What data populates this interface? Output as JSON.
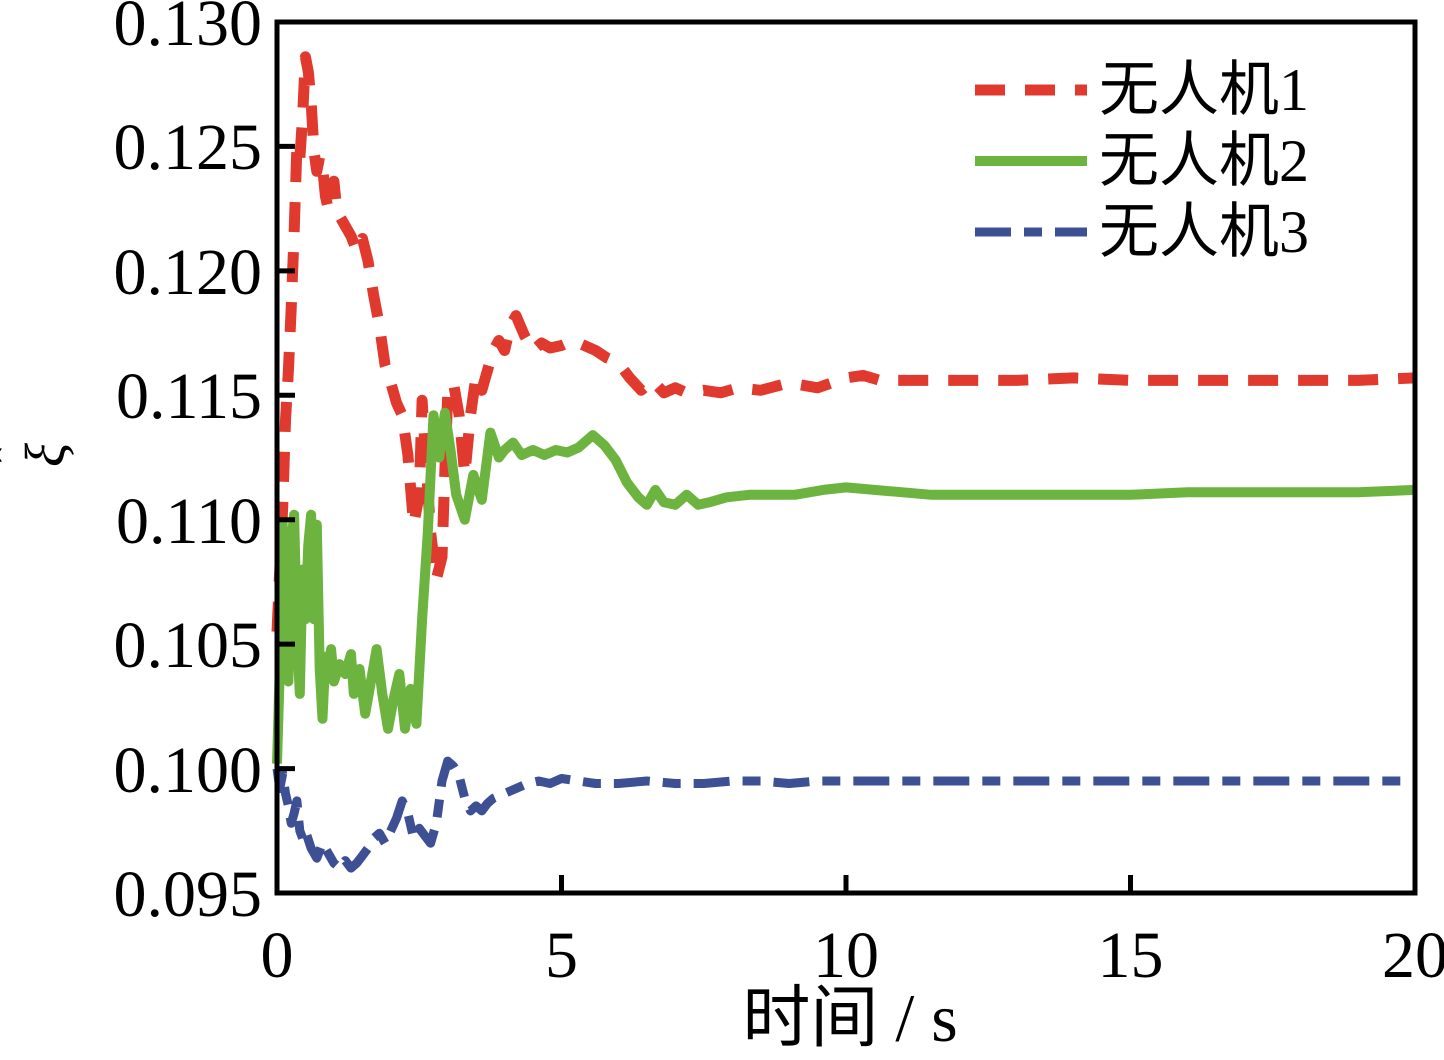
{
  "chart_data": {
    "type": "line",
    "title": "",
    "xlabel": "时间 / s",
    "ylabel": "ξ̂",
    "ylabel_letter": "ξ",
    "ylabel_hat": "ˆ",
    "xlim": [
      0,
      20
    ],
    "ylim": [
      0.095,
      0.13
    ],
    "grid": false,
    "legend_position": "upper right",
    "x_ticks": [
      0,
      5,
      10,
      15,
      20
    ],
    "x_tick_labels": [
      "0",
      "5",
      "10",
      "15",
      "20"
    ],
    "y_ticks": [
      0.13,
      0.125,
      0.12,
      0.115,
      0.11,
      0.105,
      0.1,
      0.095
    ],
    "y_tick_labels": [
      "0.130",
      "0.125",
      "0.120",
      "0.115",
      "0.110",
      "0.105",
      "0.100",
      "0.095"
    ],
    "axis_color": "#000000",
    "series": [
      {
        "name": "无人机1",
        "color": "#e03a2f",
        "style": "dashed",
        "points": [
          [
            0,
            0.1055
          ],
          [
            0.05,
            0.108
          ],
          [
            0.1,
            0.1105
          ],
          [
            0.15,
            0.114
          ],
          [
            0.2,
            0.116
          ],
          [
            0.25,
            0.1185
          ],
          [
            0.3,
            0.1215
          ],
          [
            0.35,
            0.125
          ],
          [
            0.4,
            0.1245
          ],
          [
            0.45,
            0.1262
          ],
          [
            0.5,
            0.1286
          ],
          [
            0.55,
            0.128
          ],
          [
            0.6,
            0.1268
          ],
          [
            0.65,
            0.1248
          ],
          [
            0.7,
            0.124
          ],
          [
            0.75,
            0.1246
          ],
          [
            0.8,
            0.1242
          ],
          [
            0.85,
            0.123
          ],
          [
            0.9,
            0.1225
          ],
          [
            0.95,
            0.1232
          ],
          [
            1,
            0.1236
          ],
          [
            1.05,
            0.1225
          ],
          [
            1.1,
            0.1222
          ],
          [
            1.2,
            0.1218
          ],
          [
            1.3,
            0.1214
          ],
          [
            1.4,
            0.1208
          ],
          [
            1.5,
            0.1213
          ],
          [
            1.6,
            0.1204
          ],
          [
            1.7,
            0.119
          ],
          [
            1.8,
            0.1178
          ],
          [
            1.9,
            0.1162
          ],
          [
            2,
            0.1155
          ],
          [
            2.1,
            0.1147
          ],
          [
            2.2,
            0.1142
          ],
          [
            2.3,
            0.1126
          ],
          [
            2.4,
            0.1098
          ],
          [
            2.5,
            0.111
          ],
          [
            2.55,
            0.1148
          ],
          [
            2.6,
            0.113
          ],
          [
            2.7,
            0.1095
          ],
          [
            2.8,
            0.1076
          ],
          [
            2.9,
            0.1085
          ],
          [
            2.95,
            0.112
          ],
          [
            3,
            0.115
          ],
          [
            3.1,
            0.1155
          ],
          [
            3.2,
            0.1142
          ],
          [
            3.3,
            0.1118
          ],
          [
            3.4,
            0.1142
          ],
          [
            3.5,
            0.1158
          ],
          [
            3.6,
            0.1152
          ],
          [
            3.7,
            0.116
          ],
          [
            3.8,
            0.1168
          ],
          [
            3.9,
            0.1172
          ],
          [
            4,
            0.1168
          ],
          [
            4.1,
            0.1178
          ],
          [
            4.2,
            0.1182
          ],
          [
            4.35,
            0.1174
          ],
          [
            4.5,
            0.1168
          ],
          [
            4.65,
            0.1171
          ],
          [
            4.8,
            0.1169
          ],
          [
            5,
            0.117
          ],
          [
            5.2,
            0.1172
          ],
          [
            5.4,
            0.117
          ],
          [
            5.6,
            0.1168
          ],
          [
            5.8,
            0.1165
          ],
          [
            6,
            0.1163
          ],
          [
            6.2,
            0.1157
          ],
          [
            6.4,
            0.1152
          ],
          [
            6.6,
            0.1156
          ],
          [
            6.8,
            0.1151
          ],
          [
            7,
            0.1153
          ],
          [
            7.2,
            0.1151
          ],
          [
            7.5,
            0.1152
          ],
          [
            7.8,
            0.1151
          ],
          [
            8.1,
            0.1153
          ],
          [
            8.5,
            0.1152
          ],
          [
            9,
            0.1155
          ],
          [
            9.5,
            0.1153
          ],
          [
            10,
            0.1157
          ],
          [
            10.3,
            0.1158
          ],
          [
            10.6,
            0.1156
          ],
          [
            11,
            0.1156
          ],
          [
            12,
            0.1156
          ],
          [
            13,
            0.1156
          ],
          [
            14,
            0.1157
          ],
          [
            15,
            0.1156
          ],
          [
            16,
            0.1156
          ],
          [
            17,
            0.1156
          ],
          [
            18,
            0.1156
          ],
          [
            19,
            0.1156
          ],
          [
            20,
            0.1157
          ]
        ]
      },
      {
        "name": "无人机2",
        "color": "#6db33f",
        "style": "solid",
        "points": [
          [
            0,
            0.1002
          ],
          [
            0.05,
            0.104
          ],
          [
            0.1,
            0.1098
          ],
          [
            0.15,
            0.106
          ],
          [
            0.2,
            0.1035
          ],
          [
            0.25,
            0.109
          ],
          [
            0.3,
            0.1102
          ],
          [
            0.35,
            0.1055
          ],
          [
            0.4,
            0.103
          ],
          [
            0.45,
            0.108
          ],
          [
            0.5,
            0.106
          ],
          [
            0.55,
            0.109
          ],
          [
            0.6,
            0.1102
          ],
          [
            0.65,
            0.106
          ],
          [
            0.7,
            0.1098
          ],
          [
            0.75,
            0.104
          ],
          [
            0.8,
            0.102
          ],
          [
            0.85,
            0.1045
          ],
          [
            0.9,
            0.1038
          ],
          [
            0.95,
            0.1048
          ],
          [
            1,
            0.1035
          ],
          [
            1.1,
            0.1042
          ],
          [
            1.2,
            0.1038
          ],
          [
            1.3,
            0.1046
          ],
          [
            1.35,
            0.103
          ],
          [
            1.45,
            0.104
          ],
          [
            1.55,
            0.1022
          ],
          [
            1.65,
            0.1035
          ],
          [
            1.75,
            0.1048
          ],
          [
            1.85,
            0.103
          ],
          [
            1.95,
            0.1016
          ],
          [
            2.05,
            0.1028
          ],
          [
            2.15,
            0.1038
          ],
          [
            2.25,
            0.1016
          ],
          [
            2.35,
            0.1032
          ],
          [
            2.45,
            0.1018
          ],
          [
            2.55,
            0.106
          ],
          [
            2.65,
            0.1095
          ],
          [
            2.75,
            0.1142
          ],
          [
            2.85,
            0.1125
          ],
          [
            2.95,
            0.1143
          ],
          [
            3.05,
            0.1128
          ],
          [
            3.15,
            0.111
          ],
          [
            3.3,
            0.11
          ],
          [
            3.45,
            0.1118
          ],
          [
            3.6,
            0.1108
          ],
          [
            3.75,
            0.1135
          ],
          [
            3.9,
            0.1125
          ],
          [
            4,
            0.1128
          ],
          [
            4.15,
            0.1131
          ],
          [
            4.3,
            0.1126
          ],
          [
            4.5,
            0.1128
          ],
          [
            4.7,
            0.1126
          ],
          [
            4.9,
            0.1128
          ],
          [
            5.1,
            0.1127
          ],
          [
            5.3,
            0.1129
          ],
          [
            5.55,
            0.1134
          ],
          [
            5.75,
            0.113
          ],
          [
            5.95,
            0.1124
          ],
          [
            6.15,
            0.1115
          ],
          [
            6.35,
            0.1109
          ],
          [
            6.5,
            0.1106
          ],
          [
            6.65,
            0.1112
          ],
          [
            6.8,
            0.1107
          ],
          [
            7,
            0.1106
          ],
          [
            7.2,
            0.111
          ],
          [
            7.4,
            0.1106
          ],
          [
            7.6,
            0.1107
          ],
          [
            7.9,
            0.1109
          ],
          [
            8.3,
            0.111
          ],
          [
            8.7,
            0.111
          ],
          [
            9.1,
            0.111
          ],
          [
            9.6,
            0.1112
          ],
          [
            10,
            0.1113
          ],
          [
            10.5,
            0.1112
          ],
          [
            11,
            0.1111
          ],
          [
            11.5,
            0.111
          ],
          [
            12,
            0.111
          ],
          [
            13,
            0.111
          ],
          [
            14,
            0.111
          ],
          [
            15,
            0.111
          ],
          [
            16,
            0.1111
          ],
          [
            17,
            0.1111
          ],
          [
            18,
            0.1111
          ],
          [
            19,
            0.1111
          ],
          [
            20,
            0.1112
          ]
        ]
      },
      {
        "name": "无人机3",
        "color": "#3e5094",
        "style": "dash-dot",
        "points": [
          [
            0,
            0.1
          ],
          [
            0.05,
            0.0992
          ],
          [
            0.1,
            0.0998
          ],
          [
            0.15,
            0.099
          ],
          [
            0.2,
            0.0985
          ],
          [
            0.25,
            0.0978
          ],
          [
            0.3,
            0.0982
          ],
          [
            0.35,
            0.0987
          ],
          [
            0.4,
            0.0975
          ],
          [
            0.45,
            0.0972
          ],
          [
            0.5,
            0.0975
          ],
          [
            0.6,
            0.0968
          ],
          [
            0.7,
            0.0964
          ],
          [
            0.8,
            0.097
          ],
          [
            0.9,
            0.0966
          ],
          [
            1,
            0.0962
          ],
          [
            1.1,
            0.096
          ],
          [
            1.2,
            0.0963
          ],
          [
            1.3,
            0.096
          ],
          [
            1.4,
            0.0962
          ],
          [
            1.5,
            0.0965
          ],
          [
            1.6,
            0.0968
          ],
          [
            1.7,
            0.0972
          ],
          [
            1.8,
            0.0974
          ],
          [
            1.9,
            0.097
          ],
          [
            2,
            0.0975
          ],
          [
            2.1,
            0.098
          ],
          [
            2.2,
            0.0987
          ],
          [
            2.3,
            0.0982
          ],
          [
            2.4,
            0.0972
          ],
          [
            2.5,
            0.0976
          ],
          [
            2.6,
            0.0973
          ],
          [
            2.7,
            0.097
          ],
          [
            2.8,
            0.0978
          ],
          [
            2.9,
            0.0995
          ],
          [
            3,
            0.1003
          ],
          [
            3.1,
            0.1001
          ],
          [
            3.2,
            0.0997
          ],
          [
            3.3,
            0.0988
          ],
          [
            3.4,
            0.0983
          ],
          [
            3.5,
            0.0985
          ],
          [
            3.6,
            0.0983
          ],
          [
            3.7,
            0.0986
          ],
          [
            3.8,
            0.0988
          ],
          [
            3.9,
            0.0989
          ],
          [
            4,
            0.099
          ],
          [
            4.2,
            0.0992
          ],
          [
            4.4,
            0.0994
          ],
          [
            4.6,
            0.0995
          ],
          [
            4.8,
            0.0994
          ],
          [
            5,
            0.0996
          ],
          [
            5.3,
            0.0995
          ],
          [
            5.6,
            0.0994
          ],
          [
            6,
            0.0994
          ],
          [
            6.5,
            0.0995
          ],
          [
            7,
            0.0994
          ],
          [
            7.5,
            0.0994
          ],
          [
            8,
            0.0995
          ],
          [
            8.5,
            0.0995
          ],
          [
            9,
            0.0994
          ],
          [
            9.5,
            0.0995
          ],
          [
            10,
            0.0995
          ],
          [
            10.5,
            0.0995
          ],
          [
            11,
            0.0995
          ],
          [
            12,
            0.0995
          ],
          [
            13,
            0.0995
          ],
          [
            14,
            0.0995
          ],
          [
            15,
            0.0995
          ],
          [
            16,
            0.0995
          ],
          [
            17,
            0.0995
          ],
          [
            18,
            0.0995
          ],
          [
            19,
            0.0995
          ],
          [
            20,
            0.0995
          ]
        ]
      }
    ]
  }
}
